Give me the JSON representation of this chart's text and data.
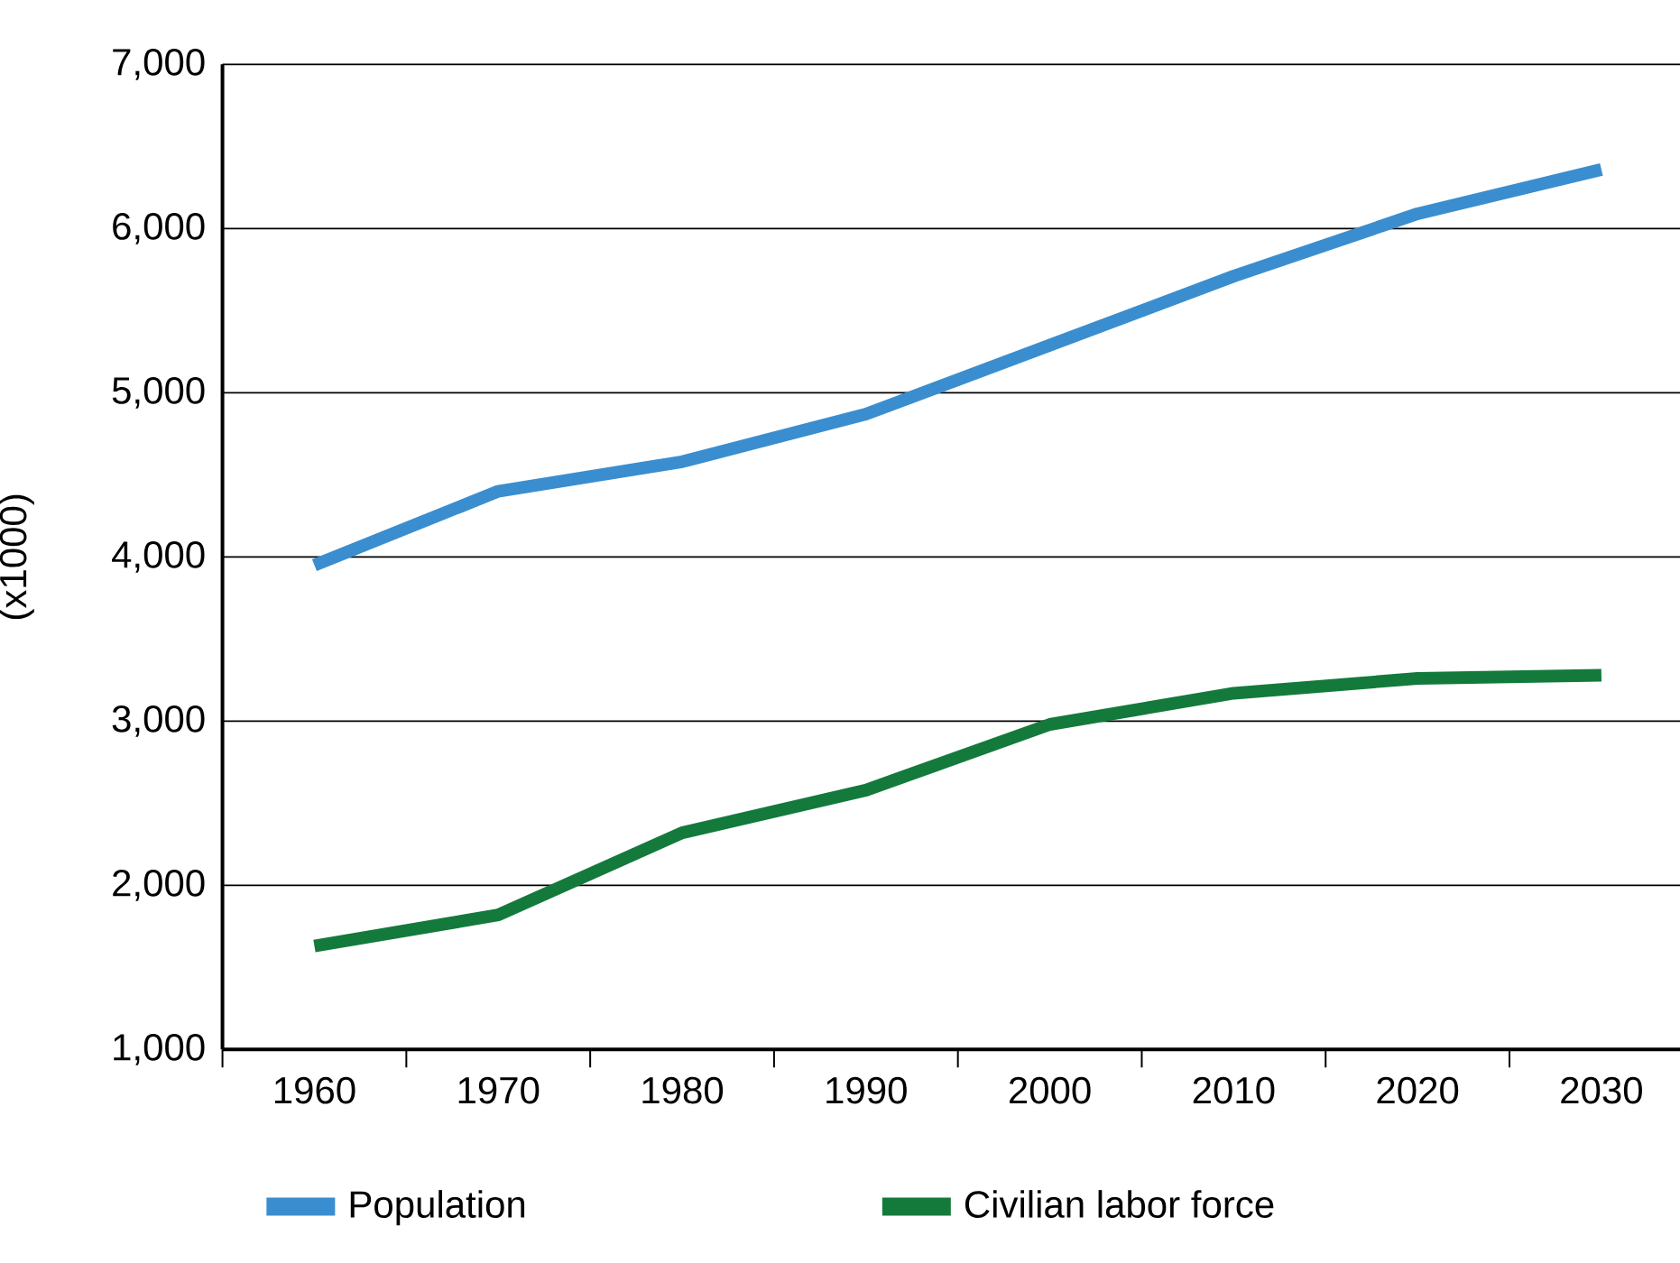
{
  "chart_data": {
    "type": "line",
    "ylabel": "(x1000)",
    "categories": [
      "1960",
      "1970",
      "1980",
      "1990",
      "2000",
      "2010",
      "2020",
      "2030"
    ],
    "series": [
      {
        "name": "Population",
        "color": "#3a8ecf",
        "values": [
          3950,
          4400,
          4580,
          4870,
          5290,
          5710,
          6090,
          6360
        ]
      },
      {
        "name": "Civilian labor force",
        "color": "#137a3c",
        "values": [
          1630,
          1820,
          2320,
          2580,
          2980,
          3170,
          3260,
          3280
        ]
      }
    ],
    "ylim": [
      1000,
      7000
    ],
    "yticks": [
      {
        "value": 1000,
        "label": "1,000"
      },
      {
        "value": 2000,
        "label": "2,000"
      },
      {
        "value": 3000,
        "label": "3,000"
      },
      {
        "value": 4000,
        "label": "4,000"
      },
      {
        "value": 5000,
        "label": "5,000"
      },
      {
        "value": 6000,
        "label": "6,000"
      },
      {
        "value": 7000,
        "label": "7,000"
      }
    ],
    "grid": "y",
    "legend": "bottom",
    "marker": "none",
    "line_style": "solid"
  }
}
